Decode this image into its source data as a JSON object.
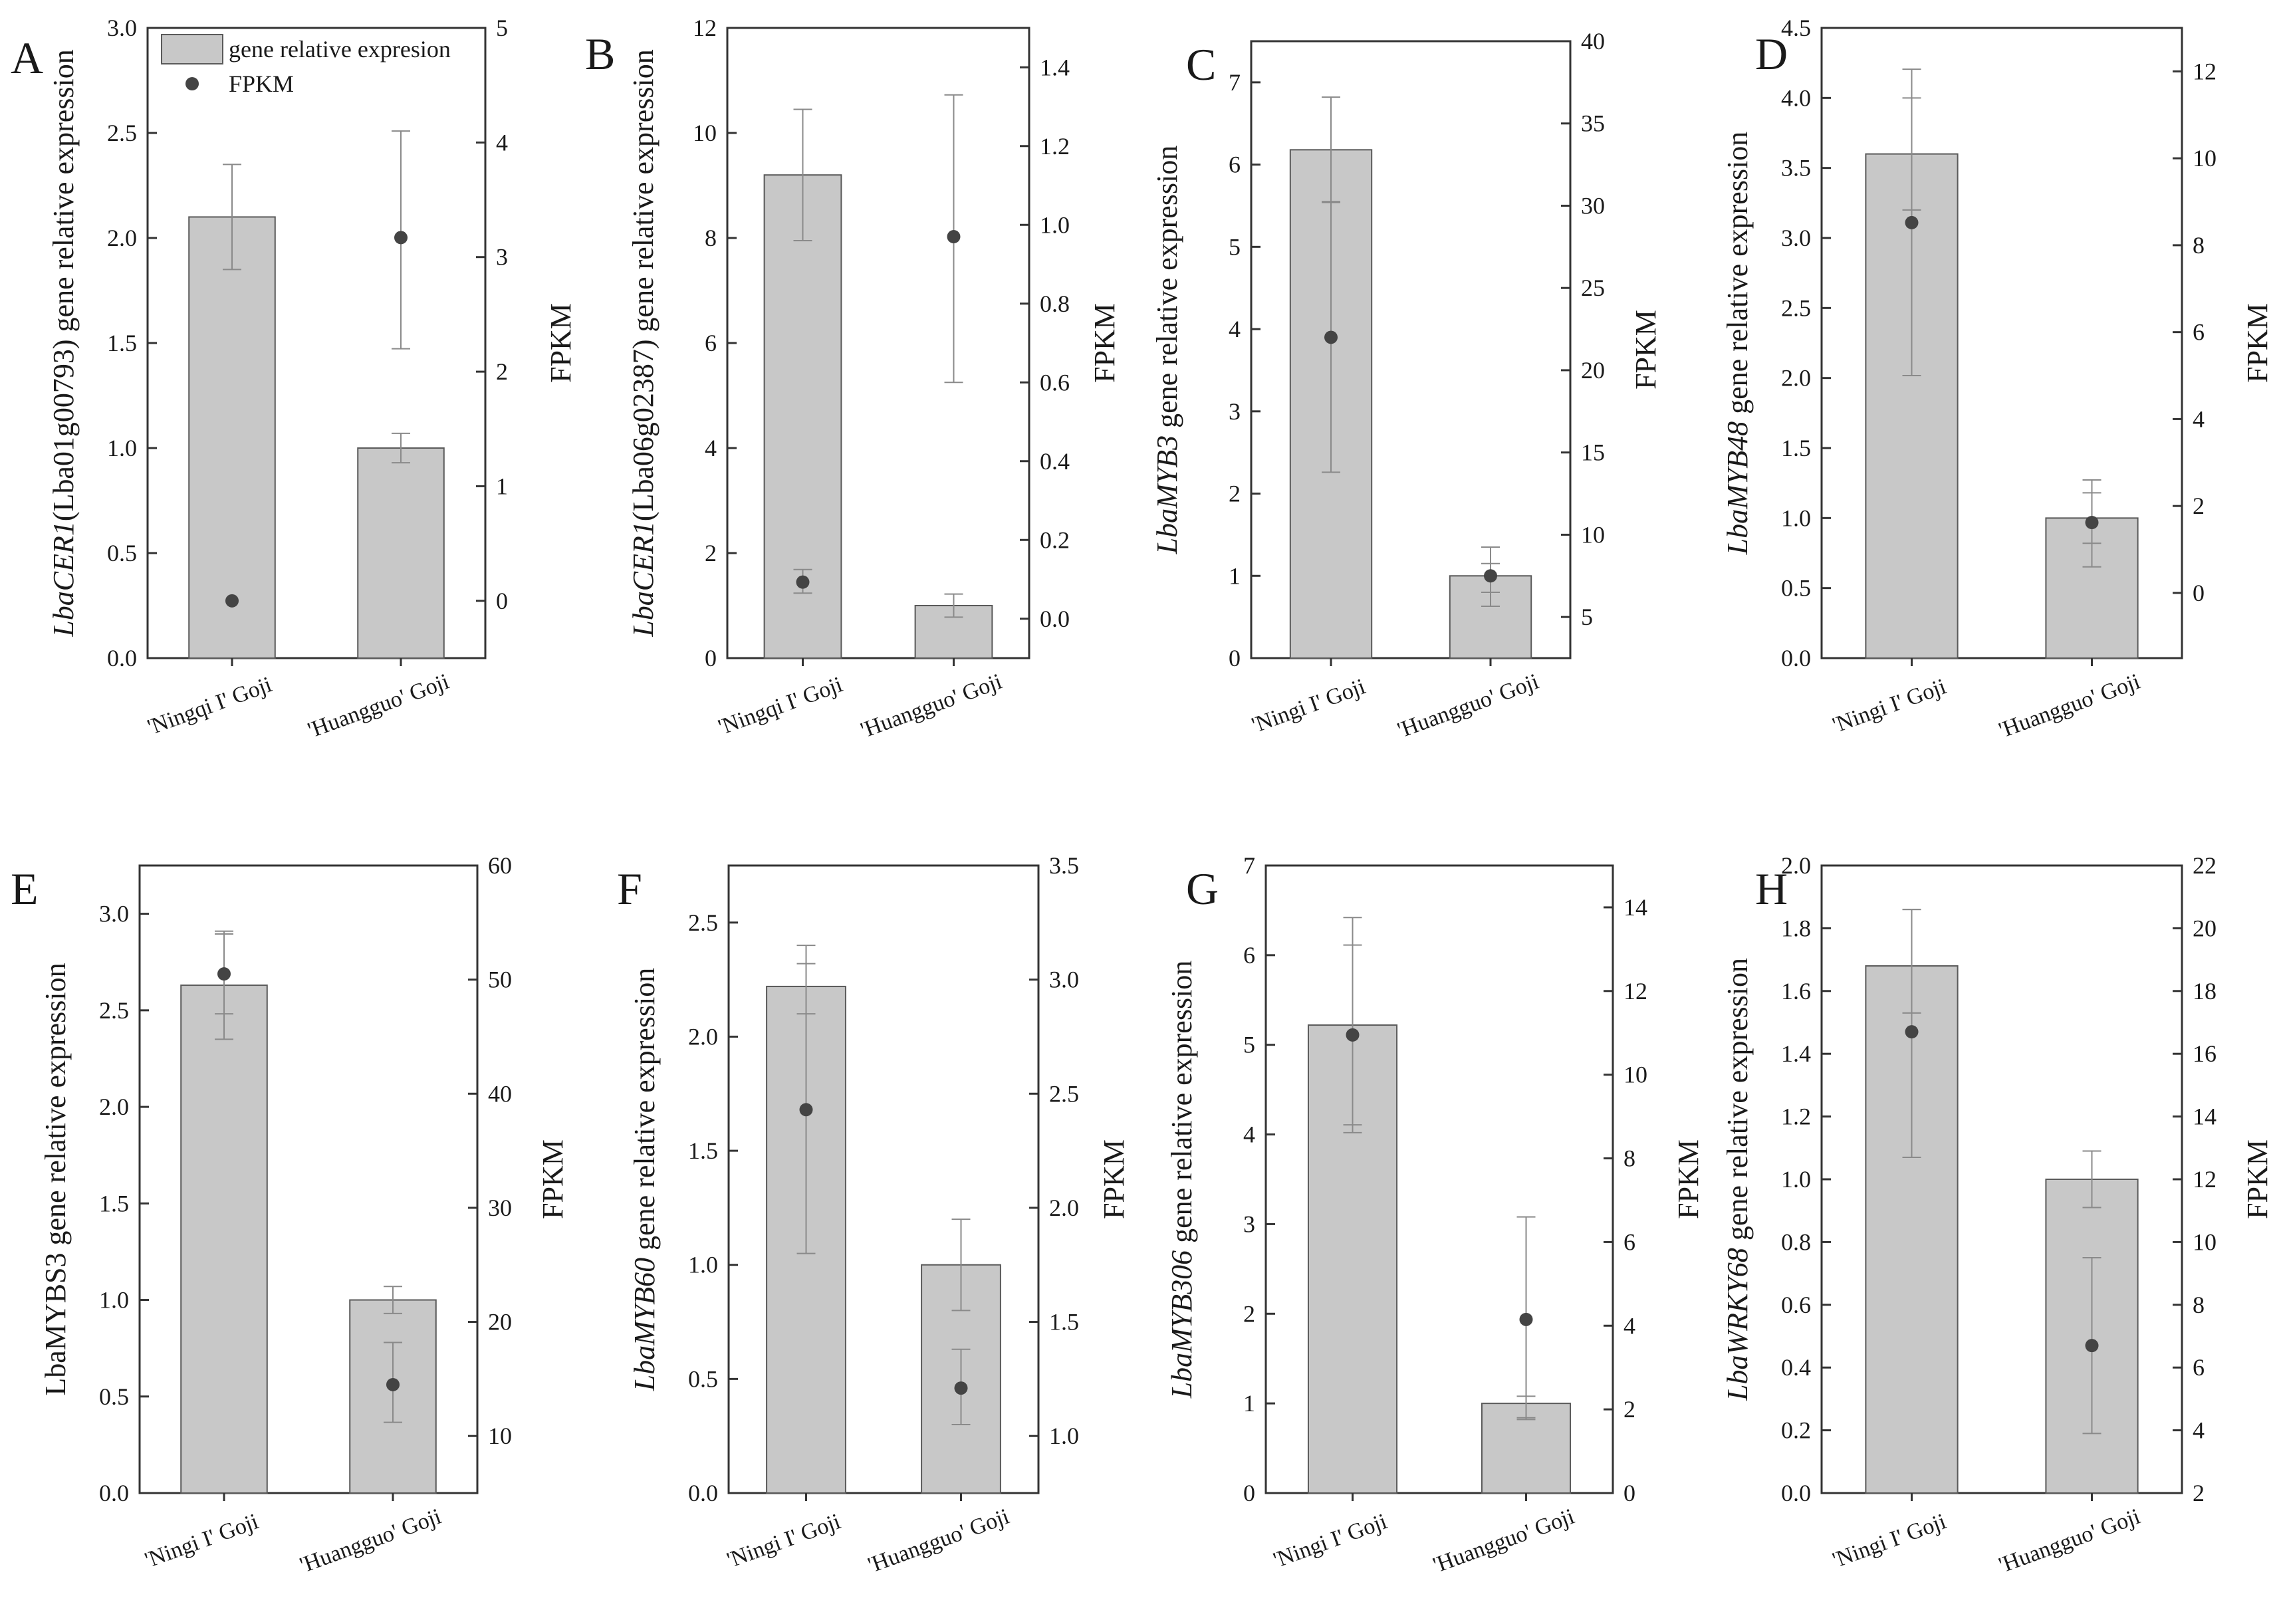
{
  "legend": {
    "bar_label": "gene relative expresion",
    "point_label": "FPKM"
  },
  "colors": {
    "bar_fill": "#c8c8c8",
    "bar_stroke": "#5a5a5a",
    "point": "#444444",
    "error": "#8a8a8a"
  },
  "chart_data": [
    {
      "type": "bar",
      "panel": "A",
      "ylabel_italic": "LbaCER1",
      "ylabel_rest": "(Lba01g00793) gene relative expression",
      "ylabel_italic_n": 7,
      "y2label": "FPKM",
      "categories": [
        "'Ningqi I' Goji",
        "'Huangguo' Goji"
      ],
      "ylim": [
        0,
        3.0
      ],
      "yticks": [
        0.0,
        0.5,
        1.0,
        1.5,
        2.0,
        2.5,
        3.0
      ],
      "yfmt": 1,
      "y2lim": [
        -0.5,
        5
      ],
      "y2ticks": [
        0,
        1,
        2,
        3,
        4,
        5
      ],
      "y2fmt": 0,
      "bars": [
        2.1,
        1.0
      ],
      "bar_err": [
        [
          1.85,
          2.35
        ],
        [
          0.93,
          1.07
        ]
      ],
      "points": [
        0.0,
        3.17
      ],
      "point_err": [
        [
          0.0,
          0.0
        ],
        [
          2.2,
          4.1
        ]
      ],
      "legend_shown": true
    },
    {
      "type": "bar",
      "panel": "B",
      "ylabel_italic": "LbaCER1",
      "ylabel_rest": "(Lba06g02387) gene relative expression",
      "ylabel_italic_n": 7,
      "y2label": "FPKM",
      "categories": [
        "'Ningqi I' Goji",
        "'Huangguo' Goji"
      ],
      "ylim": [
        0,
        12
      ],
      "yticks": [
        0,
        2,
        4,
        6,
        8,
        10,
        12
      ],
      "yfmt": 0,
      "y2lim": [
        -0.1,
        1.5
      ],
      "y2ticks": [
        0.0,
        0.2,
        0.4,
        0.6,
        0.8,
        1.0,
        1.2,
        1.4
      ],
      "y2fmt": 1,
      "bars": [
        9.2,
        1.0
      ],
      "bar_err": [
        [
          7.95,
          10.45
        ],
        [
          0.78,
          1.22
        ]
      ],
      "points": [
        0.093,
        0.97
      ],
      "point_err": [
        [
          0.065,
          0.125
        ],
        [
          0.6,
          1.33
        ]
      ],
      "legend_shown": false
    },
    {
      "type": "bar",
      "panel": "C",
      "ylabel_italic": "LbaMYB3",
      "ylabel_rest": " gene relative expression",
      "ylabel_italic_n": 7,
      "y2label": "FPKM",
      "categories": [
        "'Ningi I' Goji",
        "'Huangguo' Goji"
      ],
      "ylim": [
        0,
        7.5
      ],
      "yticks": [
        0,
        1,
        2,
        3,
        4,
        5,
        6,
        7
      ],
      "yfmt": 0,
      "y2lim": [
        2.5,
        40
      ],
      "y2ticks": [
        5,
        10,
        15,
        20,
        25,
        30,
        35,
        40
      ],
      "y2fmt": 0,
      "bars": [
        6.18,
        1.0
      ],
      "bar_err": [
        [
          5.55,
          6.82
        ],
        [
          0.63,
          1.15
        ]
      ],
      "points": [
        22.0,
        7.5
      ],
      "point_err": [
        [
          13.8,
          30.2
        ],
        [
          6.5,
          9.25
        ]
      ],
      "legend_shown": false
    },
    {
      "type": "bar",
      "panel": "D",
      "ylabel_italic": "LbaMYB48",
      "ylabel_rest": " gene relative expression",
      "ylabel_italic_n": 8,
      "y2label": "FPKM",
      "categories": [
        "'Ningi I' Goji",
        "'Huangguo' Goji"
      ],
      "ylim": [
        0,
        4.5
      ],
      "yticks": [
        0.0,
        0.5,
        1.0,
        1.5,
        2.0,
        2.5,
        3.0,
        3.5,
        4.0,
        4.5
      ],
      "yfmt": 1,
      "y2lim": [
        -1.5,
        13
      ],
      "y2ticks": [
        0,
        2,
        4,
        6,
        8,
        10,
        12
      ],
      "y2fmt": 0,
      "bars": [
        3.6,
        1.0
      ],
      "bar_err": [
        [
          3.2,
          4.0
        ],
        [
          0.82,
          1.18
        ]
      ],
      "points": [
        8.52,
        1.62
      ],
      "point_err": [
        [
          5.0,
          12.05
        ],
        [
          0.6,
          2.6
        ]
      ],
      "legend_shown": false
    },
    {
      "type": "bar",
      "panel": "E",
      "ylabel_italic": "",
      "ylabel_rest": "LbaMYBS3 gene relative expression",
      "ylabel_italic_n": 0,
      "y2label": "FPKM",
      "categories": [
        "'Ningi I' Goji",
        "'Huangguo' Goji"
      ],
      "ylim": [
        0,
        3.25
      ],
      "yticks": [
        0.0,
        0.5,
        1.0,
        1.5,
        2.0,
        2.5,
        3.0
      ],
      "yfmt": 1,
      "y2lim": [
        5,
        60
      ],
      "y2ticks": [
        10,
        20,
        30,
        40,
        50,
        60
      ],
      "y2fmt": 0,
      "bars": [
        2.63,
        1.0
      ],
      "bar_err": [
        [
          2.35,
          2.91
        ],
        [
          0.93,
          1.07
        ]
      ],
      "points": [
        50.5,
        14.5
      ],
      "point_err": [
        [
          47.0,
          54.0
        ],
        [
          11.2,
          18.2
        ]
      ],
      "legend_shown": false
    },
    {
      "type": "bar",
      "panel": "F",
      "ylabel_italic": "LbaMYB60",
      "ylabel_rest": " gene relative expression",
      "ylabel_italic_n": 8,
      "y2label": "FPKM",
      "categories": [
        "'Ningi I' Goji",
        "'Huangguo' Goji"
      ],
      "ylim": [
        0,
        2.75
      ],
      "yticks": [
        0.0,
        0.5,
        1.0,
        1.5,
        2.0,
        2.5
      ],
      "yfmt": 1,
      "y2lim": [
        0.75,
        3.5
      ],
      "y2ticks": [
        1.0,
        1.5,
        2.0,
        2.5,
        3.0,
        3.5
      ],
      "y2fmt": 1,
      "bars": [
        2.22,
        1.0
      ],
      "bar_err": [
        [
          2.1,
          2.4
        ],
        [
          0.8,
          1.2
        ]
      ],
      "points": [
        2.43,
        1.21
      ],
      "point_err": [
        [
          1.8,
          3.07
        ],
        [
          1.05,
          1.38
        ]
      ],
      "legend_shown": false
    },
    {
      "type": "bar",
      "panel": "G",
      "ylabel_italic": "LbaMYB306",
      "ylabel_rest": " gene relative expression",
      "ylabel_italic_n": 9,
      "y2label": "FPKM",
      "categories": [
        "'Ningi I' Goji",
        "'Huangguo' Goji"
      ],
      "ylim": [
        0,
        7
      ],
      "yticks": [
        0,
        1,
        2,
        3,
        4,
        5,
        6,
        7
      ],
      "yfmt": 0,
      "y2lim": [
        0,
        15
      ],
      "y2ticks": [
        0,
        2,
        4,
        6,
        8,
        10,
        12,
        14
      ],
      "y2fmt": 0,
      "bars": [
        5.22,
        1.0
      ],
      "bar_err": [
        [
          4.02,
          6.42
        ],
        [
          0.82,
          1.08
        ]
      ],
      "points": [
        10.95,
        4.15
      ],
      "point_err": [
        [
          8.8,
          13.1
        ],
        [
          1.8,
          6.6
        ]
      ],
      "legend_shown": false
    },
    {
      "type": "bar",
      "panel": "H",
      "ylabel_italic": "LbaWRKY68",
      "ylabel_rest": " gene relative expression",
      "ylabel_italic_n": 9,
      "y2label": "FPKM",
      "categories": [
        "'Ningi I' Goji",
        "'Huangguo' Goji"
      ],
      "ylim": [
        0,
        2.0
      ],
      "yticks": [
        0.0,
        0.2,
        0.4,
        0.6,
        0.8,
        1.0,
        1.2,
        1.4,
        1.6,
        1.8,
        2.0
      ],
      "yfmt": 1,
      "y2lim": [
        2,
        22
      ],
      "y2ticks": [
        2,
        4,
        6,
        8,
        10,
        12,
        14,
        16,
        18,
        20,
        22
      ],
      "y2fmt": 0,
      "bars": [
        1.68,
        1.0
      ],
      "bar_err": [
        [
          1.53,
          1.86
        ],
        [
          0.91,
          1.09
        ]
      ],
      "points": [
        16.7,
        6.7
      ],
      "point_err": [
        [
          12.7,
          20.6
        ],
        [
          3.9,
          9.5
        ]
      ],
      "legend_shown": false
    }
  ]
}
